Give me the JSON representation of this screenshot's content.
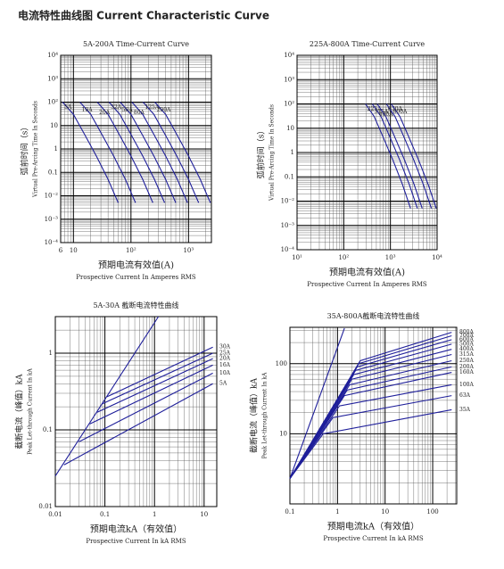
{
  "title": "电流特性曲线图 Current Characteristic Curve",
  "chart_data": [
    {
      "type": "line",
      "title": "5A-200A Time-Current Curve",
      "xlabel": [
        "预期电流有效值(A)",
        "Prospective Current In Amperes RMS"
      ],
      "ylabel": [
        "弧前时间（s）",
        "Virtual Pre-Arcing Time In Seconds"
      ],
      "xscale": "log",
      "yscale": "log",
      "grid": true,
      "minor_grid": true,
      "xlim": [
        6,
        2500
      ],
      "ylim": [
        0.0001,
        10000
      ],
      "xticks": [
        6,
        10,
        {
          "value": 100,
          "label": "10²"
        },
        {
          "value": 1000,
          "label": "10³"
        }
      ],
      "yticks": [
        {
          "value": 0.0001,
          "label": "10⁻⁴"
        },
        {
          "value": 0.001,
          "label": "10⁻³"
        },
        {
          "value": 0.01,
          "label": "10⁻²"
        },
        0.1,
        1,
        10,
        {
          "value": 100,
          "label": "10²"
        },
        {
          "value": 1000,
          "label": "10³"
        },
        {
          "value": 10000,
          "label": "10⁴"
        }
      ],
      "series": [
        {
          "name": "5A",
          "color": "#1f1f9a",
          "x": [
            6.5,
            10,
            15,
            25,
            40,
            60
          ],
          "values": [
            100,
            30,
            5,
            0.5,
            0.05,
            0.005
          ]
        },
        {
          "name": "10A",
          "color": "#1f1f9a",
          "x": [
            13,
            20,
            30,
            50,
            80,
            120
          ],
          "values": [
            100,
            30,
            5,
            0.5,
            0.05,
            0.005
          ]
        },
        {
          "name": "20A",
          "color": "#1f1f9a",
          "x": [
            26,
            40,
            60,
            100,
            160,
            240
          ],
          "values": [
            100,
            30,
            5,
            0.5,
            0.05,
            0.005
          ]
        },
        {
          "name": "32A",
          "color": "#1f1f9a",
          "x": [
            41.6,
            64,
            96,
            160,
            256,
            384
          ],
          "values": [
            100,
            30,
            5,
            0.5,
            0.05,
            0.005
          ]
        },
        {
          "name": "50A",
          "color": "#1f1f9a",
          "x": [
            65,
            100,
            150,
            250,
            400,
            600
          ],
          "values": [
            100,
            30,
            5,
            0.5,
            0.05,
            0.005
          ]
        },
        {
          "name": "80A",
          "color": "#1f1f9a",
          "x": [
            104,
            160,
            240,
            400,
            640,
            960
          ],
          "values": [
            100,
            30,
            5,
            0.5,
            0.05,
            0.005
          ]
        },
        {
          "name": "125A",
          "color": "#1f1f9a",
          "x": [
            162.5,
            250,
            375,
            625,
            1000,
            1500
          ],
          "values": [
            100,
            30,
            5,
            0.5,
            0.05,
            0.005
          ]
        },
        {
          "name": "200A",
          "color": "#1f1f9a",
          "x": [
            260,
            400,
            600,
            1000,
            1600,
            2400
          ],
          "values": [
            100,
            30,
            5,
            0.5,
            0.05,
            0.005
          ]
        }
      ]
    },
    {
      "type": "line",
      "title": "225A-800A Time-Current Curve",
      "xlabel": [
        "预期电流有效值(A)",
        "Prospective Current In Amperes RMS"
      ],
      "ylabel": [
        "弧前时间（s）",
        "Virtual Pre-Arcing Time In Seconds"
      ],
      "xscale": "log",
      "yscale": "log",
      "grid": true,
      "minor_grid": true,
      "xlim": [
        10,
        10000
      ],
      "ylim": [
        0.0001,
        10000
      ],
      "xticks": [
        {
          "value": 10,
          "label": "10¹"
        },
        {
          "value": 100,
          "label": "10²"
        },
        {
          "value": 1000,
          "label": "10³"
        },
        {
          "value": 10000,
          "label": "10⁴"
        }
      ],
      "yticks": [
        {
          "value": 0.0001,
          "label": "10⁻⁴"
        },
        {
          "value": 0.001,
          "label": "10⁻³"
        },
        {
          "value": 0.01,
          "label": "10⁻²"
        },
        0.1,
        1,
        10,
        {
          "value": 100,
          "label": "10²"
        },
        {
          "value": 1000,
          "label": "10³"
        },
        {
          "value": 10000,
          "label": "10⁴"
        }
      ],
      "series": [
        {
          "name": "225A",
          "color": "#1f1f9a",
          "x": [
            293,
            450,
            675,
            1125,
            1800,
            2700
          ],
          "values": [
            100,
            30,
            5,
            0.5,
            0.05,
            0.005
          ]
        },
        {
          "name": "315A",
          "color": "#1f1f9a",
          "x": [
            410,
            630,
            945,
            1575,
            2520,
            3780
          ],
          "values": [
            100,
            30,
            5,
            0.5,
            0.05,
            0.005
          ]
        },
        {
          "name": "400A",
          "color": "#1f1f9a",
          "x": [
            520,
            800,
            1200,
            2000,
            3200,
            4800
          ],
          "values": [
            100,
            30,
            5,
            0.5,
            0.05,
            0.005
          ]
        },
        {
          "name": "630A",
          "color": "#1f1f9a",
          "x": [
            819,
            1260,
            1890,
            3150,
            5040,
            7560
          ],
          "values": [
            100,
            30,
            5,
            0.5,
            0.05,
            0.005
          ]
        },
        {
          "name": "800A",
          "color": "#1f1f9a",
          "x": [
            1040,
            1600,
            2400,
            4000,
            6400,
            9600
          ],
          "values": [
            100,
            30,
            5,
            0.5,
            0.05,
            0.005
          ]
        }
      ]
    },
    {
      "type": "line",
      "title": "5A-30A 截断电流特性曲线",
      "xlabel": [
        "预期电流kA（有效值）",
        "Prospective Current In kA RMS"
      ],
      "ylabel": [
        "截断电流（峰值）kA",
        "Peak Let-through Current In kA"
      ],
      "xscale": "log",
      "yscale": "log",
      "grid": true,
      "minor_grid": true,
      "xlim": [
        0.01,
        18
      ],
      "ylim": [
        0.01,
        3
      ],
      "xticks": [
        0.01,
        0.1,
        1,
        10
      ],
      "yticks": [
        0.01,
        0.1,
        1
      ],
      "series": [
        {
          "color": "#1f1f9a",
          "x": [
            0.01,
            1.2
          ],
          "values": [
            0.025,
            3
          ]
        },
        {
          "name": "30A",
          "color": "#1f1f9a",
          "x": [
            0.11,
            15
          ],
          "values": [
            0.27,
            1.2
          ]
        },
        {
          "name": "25A",
          "color": "#1f1f9a",
          "x": [
            0.09,
            15
          ],
          "values": [
            0.22,
            1.0
          ]
        },
        {
          "name": "20A",
          "color": "#1f1f9a",
          "x": [
            0.07,
            15
          ],
          "values": [
            0.17,
            0.85
          ]
        },
        {
          "name": "16A",
          "color": "#1f1f9a",
          "x": [
            0.05,
            15
          ],
          "values": [
            0.12,
            0.7
          ]
        },
        {
          "name": "10A",
          "color": "#1f1f9a",
          "x": [
            0.03,
            15
          ],
          "values": [
            0.07,
            0.55
          ]
        },
        {
          "name": "5A",
          "color": "#1f1f9a",
          "x": [
            0.015,
            15
          ],
          "values": [
            0.035,
            0.4
          ]
        }
      ]
    },
    {
      "type": "line",
      "title": "35A-800A截断电流特性曲线",
      "xlabel": [
        "预期电流kA（有效值）",
        "Prospective Current In kA RMS"
      ],
      "ylabel": [
        "截断电流（峰值）kA",
        "Peak Let-through Current In kA"
      ],
      "xscale": "log",
      "yscale": "log",
      "grid": true,
      "minor_grid": true,
      "xlim": [
        0.1,
        320
      ],
      "ylim": [
        1,
        330
      ],
      "xticks": [
        0.1,
        1,
        10,
        100
      ],
      "yticks": [
        10,
        100
      ],
      "series": [
        {
          "color": "#1f1f9a",
          "x": [
            0.1,
            1.4
          ],
          "values": [
            2.3,
            320
          ]
        },
        {
          "name": "800A",
          "color": "#1f1f9a",
          "x": [
            0.1,
            3,
            250
          ],
          "values": [
            2.3,
            110,
            280
          ]
        },
        {
          "name": "700A",
          "color": "#1f1f9a",
          "x": [
            0.1,
            2.8,
            250
          ],
          "values": [
            2.3,
            100,
            250
          ]
        },
        {
          "name": "600A",
          "color": "#1f1f9a",
          "x": [
            0.1,
            2.6,
            250
          ],
          "values": [
            2.3,
            90,
            220
          ]
        },
        {
          "name": "500A",
          "color": "#1f1f9a",
          "x": [
            0.1,
            2.4,
            250
          ],
          "values": [
            2.3,
            80,
            190
          ]
        },
        {
          "name": "400A",
          "color": "#1f1f9a",
          "x": [
            0.1,
            2.2,
            250
          ],
          "values": [
            2.3,
            70,
            160
          ]
        },
        {
          "name": "315A",
          "color": "#1f1f9a",
          "x": [
            0.1,
            2,
            250
          ],
          "values": [
            2.3,
            60,
            135
          ]
        },
        {
          "name": "250A",
          "color": "#1f1f9a",
          "x": [
            0.1,
            1.8,
            250
          ],
          "values": [
            2.3,
            50,
            110
          ]
        },
        {
          "name": "200A",
          "color": "#1f1f9a",
          "x": [
            0.1,
            1.6,
            250
          ],
          "values": [
            2.3,
            42,
            90
          ]
        },
        {
          "name": "160A",
          "color": "#1f1f9a",
          "x": [
            0.1,
            1.4,
            250
          ],
          "values": [
            2.3,
            35,
            75
          ]
        },
        {
          "name": "100A",
          "color": "#1f1f9a",
          "x": [
            0.1,
            1.1,
            250
          ],
          "values": [
            2.3,
            25,
            50
          ]
        },
        {
          "name": "63A",
          "color": "#1f1f9a",
          "x": [
            0.1,
            0.8,
            250
          ],
          "values": [
            2.3,
            17,
            35
          ]
        },
        {
          "name": "35A",
          "color": "#1f1f9a",
          "x": [
            0.1,
            0.5,
            250
          ],
          "values": [
            2.3,
            10,
            22
          ]
        }
      ]
    }
  ]
}
